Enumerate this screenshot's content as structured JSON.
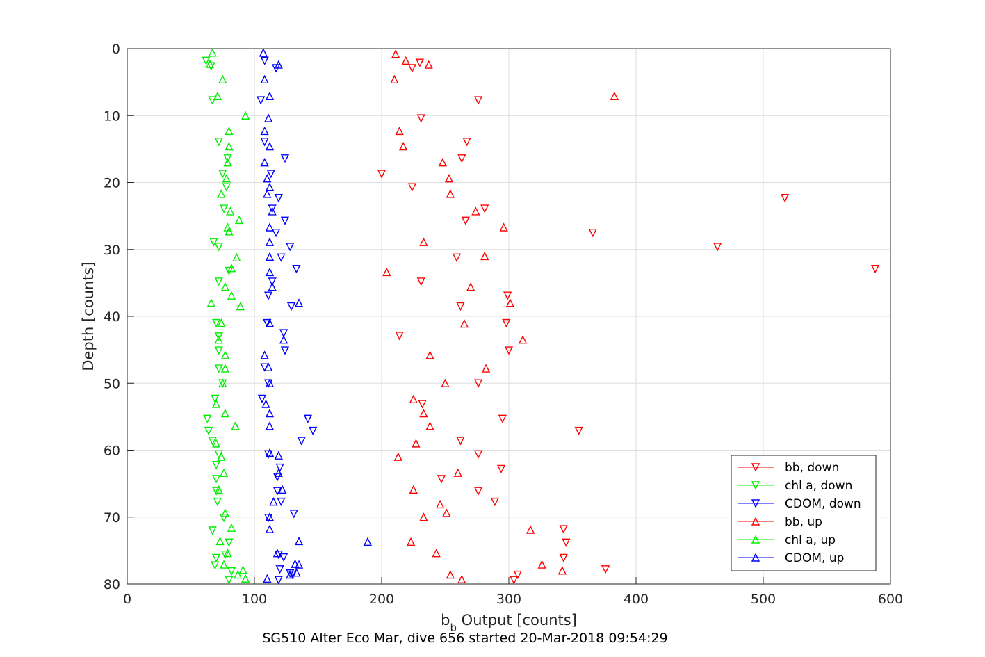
{
  "chart_data": {
    "type": "scatter",
    "xlabel_main": "b",
    "xlabel_sub": "b",
    "xlabel_rest": " Output [counts]",
    "ylabel": "Depth [counts]",
    "caption": "SG510 Alter Eco Mar, dive 656 started 20-Mar-2018 09:54:29",
    "xlim": [
      0,
      600
    ],
    "ylim": [
      0,
      80
    ],
    "y_reversed": true,
    "xticks": [
      0,
      100,
      200,
      300,
      400,
      500,
      600
    ],
    "yticks": [
      0,
      10,
      20,
      30,
      40,
      50,
      60,
      70,
      80
    ],
    "grid": true,
    "legend_position": "bottom-right",
    "series": [
      {
        "name": "bb, down",
        "color": "#ff0000",
        "marker": "triangle-down",
        "points": [
          [
            230,
            2.1
          ],
          [
            224,
            2.9
          ],
          [
            276,
            7.7
          ],
          [
            231,
            10.4
          ],
          [
            267,
            13.9
          ],
          [
            263,
            16.4
          ],
          [
            200,
            18.7
          ],
          [
            224,
            20.7
          ],
          [
            517,
            22.3
          ],
          [
            281,
            23.9
          ],
          [
            266,
            25.7
          ],
          [
            366,
            27.5
          ],
          [
            464,
            29.6
          ],
          [
            259,
            31.2
          ],
          [
            588,
            32.9
          ],
          [
            231,
            34.8
          ],
          [
            299,
            36.9
          ],
          [
            262,
            38.5
          ],
          [
            298,
            41.0
          ],
          [
            214,
            42.9
          ],
          [
            300,
            45.1
          ],
          [
            276,
            50.0
          ],
          [
            232,
            53.1
          ],
          [
            295,
            55.3
          ],
          [
            355,
            57.1
          ],
          [
            262,
            58.6
          ],
          [
            276,
            60.6
          ],
          [
            294,
            62.8
          ],
          [
            247,
            64.3
          ],
          [
            276,
            66.1
          ],
          [
            289,
            67.7
          ],
          [
            343,
            71.8
          ],
          [
            345,
            73.8
          ],
          [
            343,
            76.1
          ],
          [
            376,
            77.8
          ],
          [
            307,
            78.6
          ],
          [
            304,
            79.4
          ]
        ]
      },
      {
        "name": "chl a, down",
        "color": "#00ee00",
        "marker": "triangle-down",
        "points": [
          [
            62,
            1.8
          ],
          [
            66,
            2.6
          ],
          [
            67,
            7.7
          ],
          [
            72,
            13.9
          ],
          [
            79,
            16.4
          ],
          [
            75,
            18.7
          ],
          [
            78,
            20.7
          ],
          [
            76,
            23.9
          ],
          [
            68,
            28.9
          ],
          [
            72,
            29.6
          ],
          [
            80,
            33.2
          ],
          [
            72,
            34.8
          ],
          [
            70,
            41.0
          ],
          [
            72,
            43.0
          ],
          [
            72,
            45.1
          ],
          [
            72,
            47.8
          ],
          [
            75,
            50.0
          ],
          [
            69,
            52.3
          ],
          [
            63,
            55.3
          ],
          [
            64,
            57.1
          ],
          [
            67,
            58.6
          ],
          [
            72,
            60.6
          ],
          [
            70,
            62.2
          ],
          [
            70,
            64.3
          ],
          [
            70,
            66.1
          ],
          [
            71,
            67.7
          ],
          [
            76,
            70.1
          ],
          [
            67,
            72.0
          ],
          [
            80,
            73.8
          ],
          [
            70,
            76.1
          ],
          [
            77,
            75.6
          ],
          [
            82,
            78.1
          ],
          [
            80,
            79.4
          ],
          [
            69,
            77.2
          ]
        ]
      },
      {
        "name": "CDOM, down",
        "color": "#0000ff",
        "marker": "triangle-down",
        "points": [
          [
            108,
            1.8
          ],
          [
            117,
            2.9
          ],
          [
            105,
            7.7
          ],
          [
            108,
            13.9
          ],
          [
            124,
            16.4
          ],
          [
            113,
            18.7
          ],
          [
            119,
            22.3
          ],
          [
            114,
            23.9
          ],
          [
            124,
            25.7
          ],
          [
            117,
            27.5
          ],
          [
            128,
            29.6
          ],
          [
            121,
            31.2
          ],
          [
            133,
            32.9
          ],
          [
            114,
            34.8
          ],
          [
            111,
            36.9
          ],
          [
            129,
            38.5
          ],
          [
            110,
            41.0
          ],
          [
            123,
            42.5
          ],
          [
            124,
            45.1
          ],
          [
            108,
            47.6
          ],
          [
            111,
            50.0
          ],
          [
            106,
            52.3
          ],
          [
            142,
            55.3
          ],
          [
            146,
            57.1
          ],
          [
            137,
            58.6
          ],
          [
            111,
            60.6
          ],
          [
            120,
            62.6
          ],
          [
            118,
            64.0
          ],
          [
            118,
            66.1
          ],
          [
            121,
            67.7
          ],
          [
            131,
            69.5
          ],
          [
            111,
            70.1
          ],
          [
            119,
            75.6
          ],
          [
            123,
            76.0
          ],
          [
            120,
            77.8
          ],
          [
            130,
            78.6
          ],
          [
            128,
            78.4
          ],
          [
            119,
            79.4
          ]
        ]
      },
      {
        "name": "bb, up",
        "color": "#ff0000",
        "marker": "triangle-up",
        "points": [
          [
            211,
            0.8
          ],
          [
            219,
            1.8
          ],
          [
            237,
            2.4
          ],
          [
            210,
            4.6
          ],
          [
            383,
            7.1
          ],
          [
            214,
            12.3
          ],
          [
            217,
            14.6
          ],
          [
            248,
            17.0
          ],
          [
            253,
            19.4
          ],
          [
            254,
            21.7
          ],
          [
            274,
            24.3
          ],
          [
            296,
            26.7
          ],
          [
            233,
            28.9
          ],
          [
            281,
            31.0
          ],
          [
            204,
            33.4
          ],
          [
            270,
            35.6
          ],
          [
            301,
            38.0
          ],
          [
            265,
            41.1
          ],
          [
            311,
            43.5
          ],
          [
            238,
            45.8
          ],
          [
            282,
            47.8
          ],
          [
            250,
            50.0
          ],
          [
            225,
            52.4
          ],
          [
            233,
            54.5
          ],
          [
            238,
            56.4
          ],
          [
            227,
            59.0
          ],
          [
            213,
            61.0
          ],
          [
            260,
            63.4
          ],
          [
            225,
            65.9
          ],
          [
            246,
            68.1
          ],
          [
            233,
            70.0
          ],
          [
            251,
            69.4
          ],
          [
            317,
            71.9
          ],
          [
            223,
            73.7
          ],
          [
            243,
            75.4
          ],
          [
            326,
            77.1
          ],
          [
            342,
            78.0
          ],
          [
            254,
            78.6
          ],
          [
            263,
            79.3
          ]
        ]
      },
      {
        "name": "chl a, up",
        "color": "#00ee00",
        "marker": "triangle-up",
        "points": [
          [
            67,
            0.6
          ],
          [
            65,
            2.3
          ],
          [
            75,
            4.6
          ],
          [
            71,
            7.1
          ],
          [
            93,
            10.0
          ],
          [
            80,
            12.3
          ],
          [
            80,
            14.6
          ],
          [
            79,
            17.0
          ],
          [
            78,
            19.4
          ],
          [
            74,
            21.7
          ],
          [
            81,
            24.3
          ],
          [
            88,
            25.6
          ],
          [
            79,
            26.7
          ],
          [
            80,
            27.3
          ],
          [
            86,
            31.2
          ],
          [
            82,
            32.8
          ],
          [
            77,
            35.6
          ],
          [
            82,
            36.9
          ],
          [
            66,
            38.0
          ],
          [
            89,
            38.5
          ],
          [
            74,
            41.0
          ],
          [
            72,
            43.5
          ],
          [
            77,
            45.8
          ],
          [
            77,
            47.8
          ],
          [
            75,
            50.0
          ],
          [
            70,
            53.1
          ],
          [
            77,
            54.5
          ],
          [
            85,
            56.4
          ],
          [
            70,
            59.0
          ],
          [
            74,
            61.0
          ],
          [
            76,
            63.4
          ],
          [
            72,
            65.9
          ],
          [
            77,
            69.4
          ],
          [
            82,
            71.6
          ],
          [
            73,
            73.6
          ],
          [
            79,
            75.4
          ],
          [
            76,
            77.1
          ],
          [
            91,
            77.9
          ],
          [
            87,
            78.6
          ],
          [
            93,
            79.2
          ]
        ]
      },
      {
        "name": "CDOM, up",
        "color": "#0000ff",
        "marker": "triangle-up",
        "points": [
          [
            107,
            0.6
          ],
          [
            119,
            2.4
          ],
          [
            108,
            4.6
          ],
          [
            112,
            7.1
          ],
          [
            111,
            10.4
          ],
          [
            108,
            12.3
          ],
          [
            112,
            14.6
          ],
          [
            108,
            17.0
          ],
          [
            110,
            19.4
          ],
          [
            112,
            20.7
          ],
          [
            110,
            21.7
          ],
          [
            114,
            24.3
          ],
          [
            112,
            26.7
          ],
          [
            112,
            28.9
          ],
          [
            112,
            31.1
          ],
          [
            112,
            33.4
          ],
          [
            114,
            35.6
          ],
          [
            135,
            38.0
          ],
          [
            112,
            41.0
          ],
          [
            123,
            43.5
          ],
          [
            108,
            45.8
          ],
          [
            111,
            47.6
          ],
          [
            112,
            50.0
          ],
          [
            109,
            53.1
          ],
          [
            112,
            54.5
          ],
          [
            112,
            56.4
          ],
          [
            112,
            60.4
          ],
          [
            119,
            60.8
          ],
          [
            119,
            63.4
          ],
          [
            122,
            65.9
          ],
          [
            115,
            67.7
          ],
          [
            112,
            70.0
          ],
          [
            112,
            71.8
          ],
          [
            135,
            73.6
          ],
          [
            189,
            73.7
          ],
          [
            118,
            75.4
          ],
          [
            132,
            77.0
          ],
          [
            135,
            77.1
          ],
          [
            128,
            78.6
          ],
          [
            133,
            78.3
          ],
          [
            110,
            79.2
          ]
        ]
      }
    ]
  }
}
